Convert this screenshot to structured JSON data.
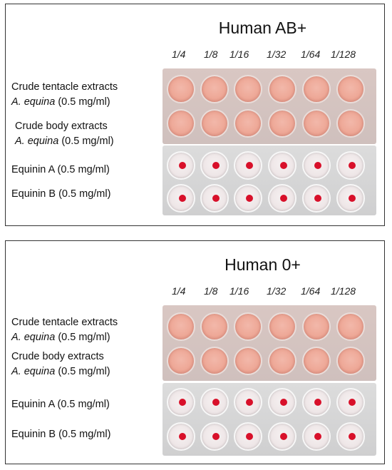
{
  "panels": [
    {
      "title": "Human AB+",
      "dilutions": [
        "1/4",
        "1/8",
        "1/16",
        "1/32",
        "1/64",
        "1/128"
      ],
      "rows": [
        {
          "line1": "Crude tentacle extracts",
          "species": "A. equina",
          "conc": "(0.5 mg/ml)",
          "result": "no-button"
        },
        {
          "line1": "Crude body extracts",
          "species": "A. equina",
          "conc": "(0.5 mg/ml)",
          "result": "no-button"
        },
        {
          "label": "Equinin A (0.5 mg/ml)",
          "result": "button"
        },
        {
          "label": "Equinin B (0.5 mg/ml)",
          "result": "button"
        }
      ]
    },
    {
      "title": "Human 0+",
      "dilutions": [
        "1/4",
        "1/8",
        "1/16",
        "1/32",
        "1/64",
        "1/128"
      ],
      "rows": [
        {
          "line1": "Crude tentacle extracts",
          "species": "A. equina",
          "conc": "(0.5 mg/ml)",
          "result": "no-button"
        },
        {
          "line1": "Crude body extracts",
          "species": "A. equina",
          "conc": "(0.5 mg/ml)",
          "result": "no-button"
        },
        {
          "label": "Equinin A (0.5 mg/ml)",
          "result": "button"
        },
        {
          "label": "Equinin B (0.5 mg/ml)",
          "result": "button"
        }
      ]
    }
  ],
  "colors": {
    "pink_well": "#eea897",
    "red_button": "#d8102a",
    "border": "#333333"
  }
}
